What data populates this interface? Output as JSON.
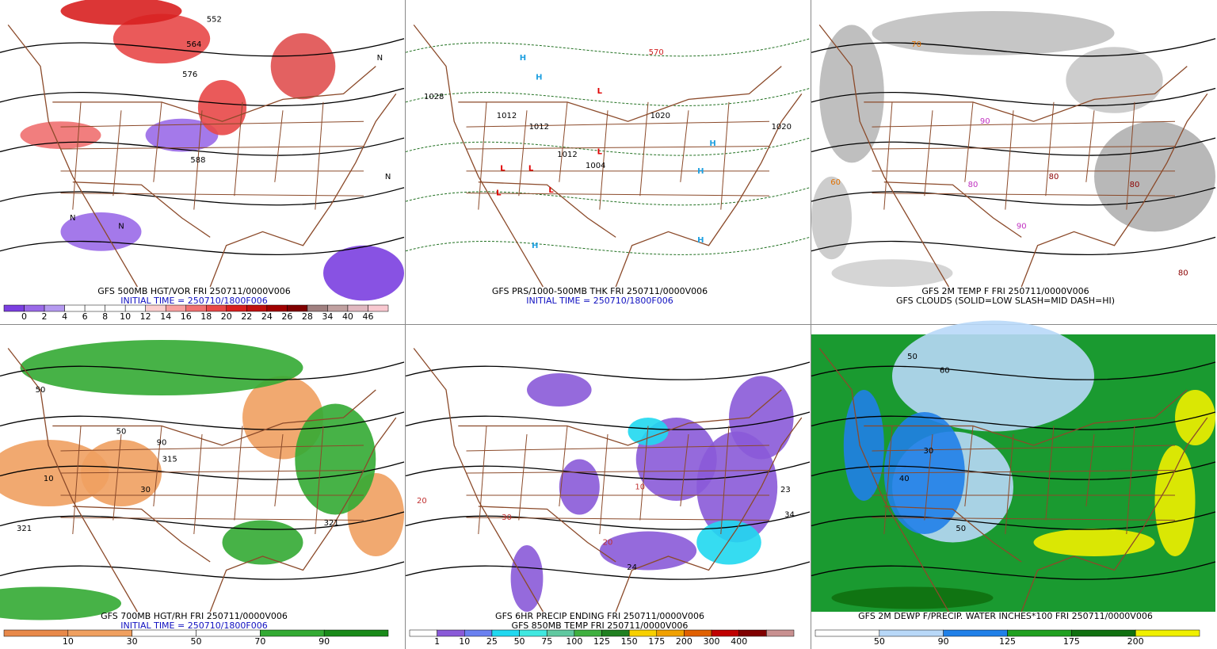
{
  "panels": [
    {
      "caption": "GFS 500MB HGT/VOR FRI 250711/0000V006",
      "initial_time": "INITIAL TIME = 250710/1800F006",
      "colorbar": {
        "colors": [
          "#7b3fe0",
          "#9a6ae8",
          "#b59af0",
          "#ffffff",
          "#ffffff",
          "#ffffff",
          "#ffffff",
          "#fbd0d0",
          "#f7a0a0",
          "#f07070",
          "#e84848",
          "#d82020",
          "#c01010",
          "#a00000",
          "#800000",
          "#a08080",
          "#c0a0a0",
          "#e0b8c0",
          "#f8c8d0"
        ],
        "labels": [
          0,
          2,
          4,
          6,
          8,
          10,
          12,
          14,
          16,
          18,
          20,
          22,
          24,
          26,
          28,
          34,
          40,
          46
        ]
      },
      "map_labels": [
        "552",
        "564",
        "576",
        "588",
        "N",
        "N",
        "N",
        "N"
      ]
    },
    {
      "caption": "GFS PRS/1000-500MB THK FRI 250711/0000V006",
      "initial_time": "INITIAL TIME = 250710/1800F006",
      "map_labels": [
        "1028",
        "1012",
        "1012",
        "1012",
        "1004",
        "1020",
        "1020",
        "570",
        "L",
        "L",
        "L",
        "L",
        "L",
        "L",
        "H",
        "H",
        "H",
        "H",
        "H",
        "H"
      ]
    },
    {
      "caption": "GFS 2M TEMP F FRI 250711/0000V006",
      "subcaption": "GFS CLOUDS (SOLID=LOW SLASH=MID DASH=HI)",
      "map_labels": [
        "80",
        "80",
        "90",
        "90",
        "60",
        "70",
        "80",
        "80"
      ]
    },
    {
      "caption": "GFS 700MB HGT/RH FRI 250711/0000V006",
      "initial_time": "INITIAL TIME = 250710/1800F006",
      "colorbar": {
        "colors": [
          "#e8894a",
          "#f0a060",
          "#ffffff",
          "#ffffff",
          "#33aa33",
          "#1a8a1a"
        ],
        "labels": [
          10,
          30,
          50,
          70,
          90
        ]
      },
      "map_labels": [
        "50",
        "50",
        "90",
        "315",
        "321",
        "321",
        "10",
        "30"
      ]
    },
    {
      "caption": "GFS 6HR PRECIP ENDING FRI 250711/0000V006",
      "subcaption": "GFS 850MB TEMP FRI 250711/0000V006",
      "colorbar": {
        "colors": [
          "#ffffff",
          "#8a5ad8",
          "#6a80f0",
          "#20d8f0",
          "#40e8e0",
          "#60c8a0",
          "#40b040",
          "#208020",
          "#f8d000",
          "#f0a000",
          "#e06000",
          "#c00000",
          "#800000",
          "#c89090"
        ],
        "labels": [
          1,
          10,
          25,
          50,
          75,
          100,
          125,
          150,
          175,
          200,
          300,
          400
        ]
      },
      "map_labels": [
        "24",
        "23",
        "34",
        "20",
        "30",
        "20",
        "10"
      ]
    },
    {
      "caption": "GFS 2M DEWP F/PRECIP. WATER INCHES*100 FRI 250711/0000V006",
      "colorbar": {
        "colors": [
          "#ffffff",
          "#b8d8f8",
          "#2080e8",
          "#20a020",
          "#107010",
          "#f0f000"
        ],
        "labels": [
          50,
          90,
          125,
          175,
          200
        ]
      },
      "map_labels": [
        "50",
        "60",
        "30",
        "40",
        "50"
      ]
    }
  ]
}
